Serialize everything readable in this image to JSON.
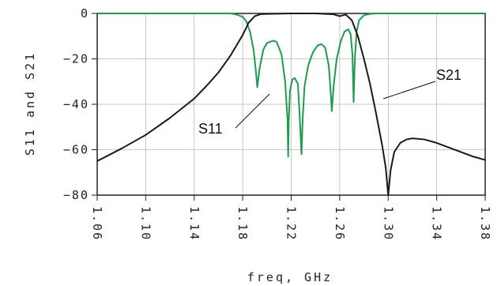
{
  "chart_data": {
    "type": "line",
    "xlabel": "freq, GHz",
    "ylabel": "S11 and S21",
    "xlim": [
      1.06,
      1.38
    ],
    "ylim": [
      -80,
      0
    ],
    "x_ticks": [
      "1.06",
      "1.10",
      "1.14",
      "1.18",
      "1.22",
      "1.26",
      "1.30",
      "1.34",
      "1.38"
    ],
    "y_ticks": [
      "0",
      "-20",
      "-40",
      "-60",
      "-80"
    ],
    "grid": true,
    "series": [
      {
        "name": "S21",
        "color": "#1a1a1a",
        "points": [
          [
            1.06,
            -65
          ],
          [
            1.08,
            -59.5
          ],
          [
            1.1,
            -53.5
          ],
          [
            1.12,
            -46
          ],
          [
            1.14,
            -37.5
          ],
          [
            1.15,
            -32
          ],
          [
            1.16,
            -26
          ],
          [
            1.17,
            -18.5
          ],
          [
            1.175,
            -14
          ],
          [
            1.18,
            -9.5
          ],
          [
            1.185,
            -4
          ],
          [
            1.19,
            -1.2
          ],
          [
            1.195,
            -0.3
          ],
          [
            1.2,
            -0.2
          ],
          [
            1.22,
            0
          ],
          [
            1.24,
            0
          ],
          [
            1.255,
            -0.4
          ],
          [
            1.26,
            -1.2
          ],
          [
            1.265,
            -0.5
          ],
          [
            1.27,
            -3
          ],
          [
            1.275,
            -10
          ],
          [
            1.28,
            -20
          ],
          [
            1.285,
            -31
          ],
          [
            1.29,
            -44
          ],
          [
            1.295,
            -58
          ],
          [
            1.298,
            -68
          ],
          [
            1.3,
            -80
          ],
          [
            1.302,
            -69
          ],
          [
            1.305,
            -61
          ],
          [
            1.31,
            -57
          ],
          [
            1.315,
            -55.5
          ],
          [
            1.32,
            -55
          ],
          [
            1.33,
            -55.5
          ],
          [
            1.34,
            -57
          ],
          [
            1.35,
            -59
          ],
          [
            1.36,
            -61
          ],
          [
            1.37,
            -63
          ],
          [
            1.38,
            -64.5
          ]
        ]
      },
      {
        "name": "S11",
        "color": "#1f9b50",
        "points": [
          [
            1.06,
            0
          ],
          [
            1.16,
            0
          ],
          [
            1.17,
            0
          ],
          [
            1.175,
            -0.5
          ],
          [
            1.18,
            -1.5
          ],
          [
            1.183,
            -3.5
          ],
          [
            1.186,
            -8
          ],
          [
            1.189,
            -16
          ],
          [
            1.191,
            -26
          ],
          [
            1.192,
            -32.5
          ],
          [
            1.194,
            -24
          ],
          [
            1.197,
            -16
          ],
          [
            1.2,
            -13
          ],
          [
            1.205,
            -12
          ],
          [
            1.208,
            -12.5
          ],
          [
            1.212,
            -18
          ],
          [
            1.215,
            -30
          ],
          [
            1.217,
            -47
          ],
          [
            1.2175,
            -63
          ],
          [
            1.218,
            -47
          ],
          [
            1.219,
            -34
          ],
          [
            1.221,
            -29
          ],
          [
            1.223,
            -28.5
          ],
          [
            1.2255,
            -31
          ],
          [
            1.227,
            -45
          ],
          [
            1.2285,
            -62
          ],
          [
            1.2295,
            -46
          ],
          [
            1.231,
            -32
          ],
          [
            1.234,
            -23
          ],
          [
            1.238,
            -17
          ],
          [
            1.242,
            -14
          ],
          [
            1.245,
            -13.5
          ],
          [
            1.248,
            -15
          ],
          [
            1.251,
            -23
          ],
          [
            1.2525,
            -34
          ],
          [
            1.2535,
            -43
          ],
          [
            1.255,
            -32
          ],
          [
            1.2575,
            -20
          ],
          [
            1.261,
            -12
          ],
          [
            1.264,
            -8
          ],
          [
            1.267,
            -7
          ],
          [
            1.269,
            -9
          ],
          [
            1.2705,
            -18
          ],
          [
            1.2715,
            -39
          ],
          [
            1.2725,
            -20
          ],
          [
            1.274,
            -8
          ],
          [
            1.276,
            -3
          ],
          [
            1.28,
            -0.8
          ],
          [
            1.285,
            -0.2
          ],
          [
            1.29,
            0
          ],
          [
            1.38,
            0
          ]
        ]
      }
    ],
    "annotations": [
      "S11",
      "S21"
    ]
  }
}
